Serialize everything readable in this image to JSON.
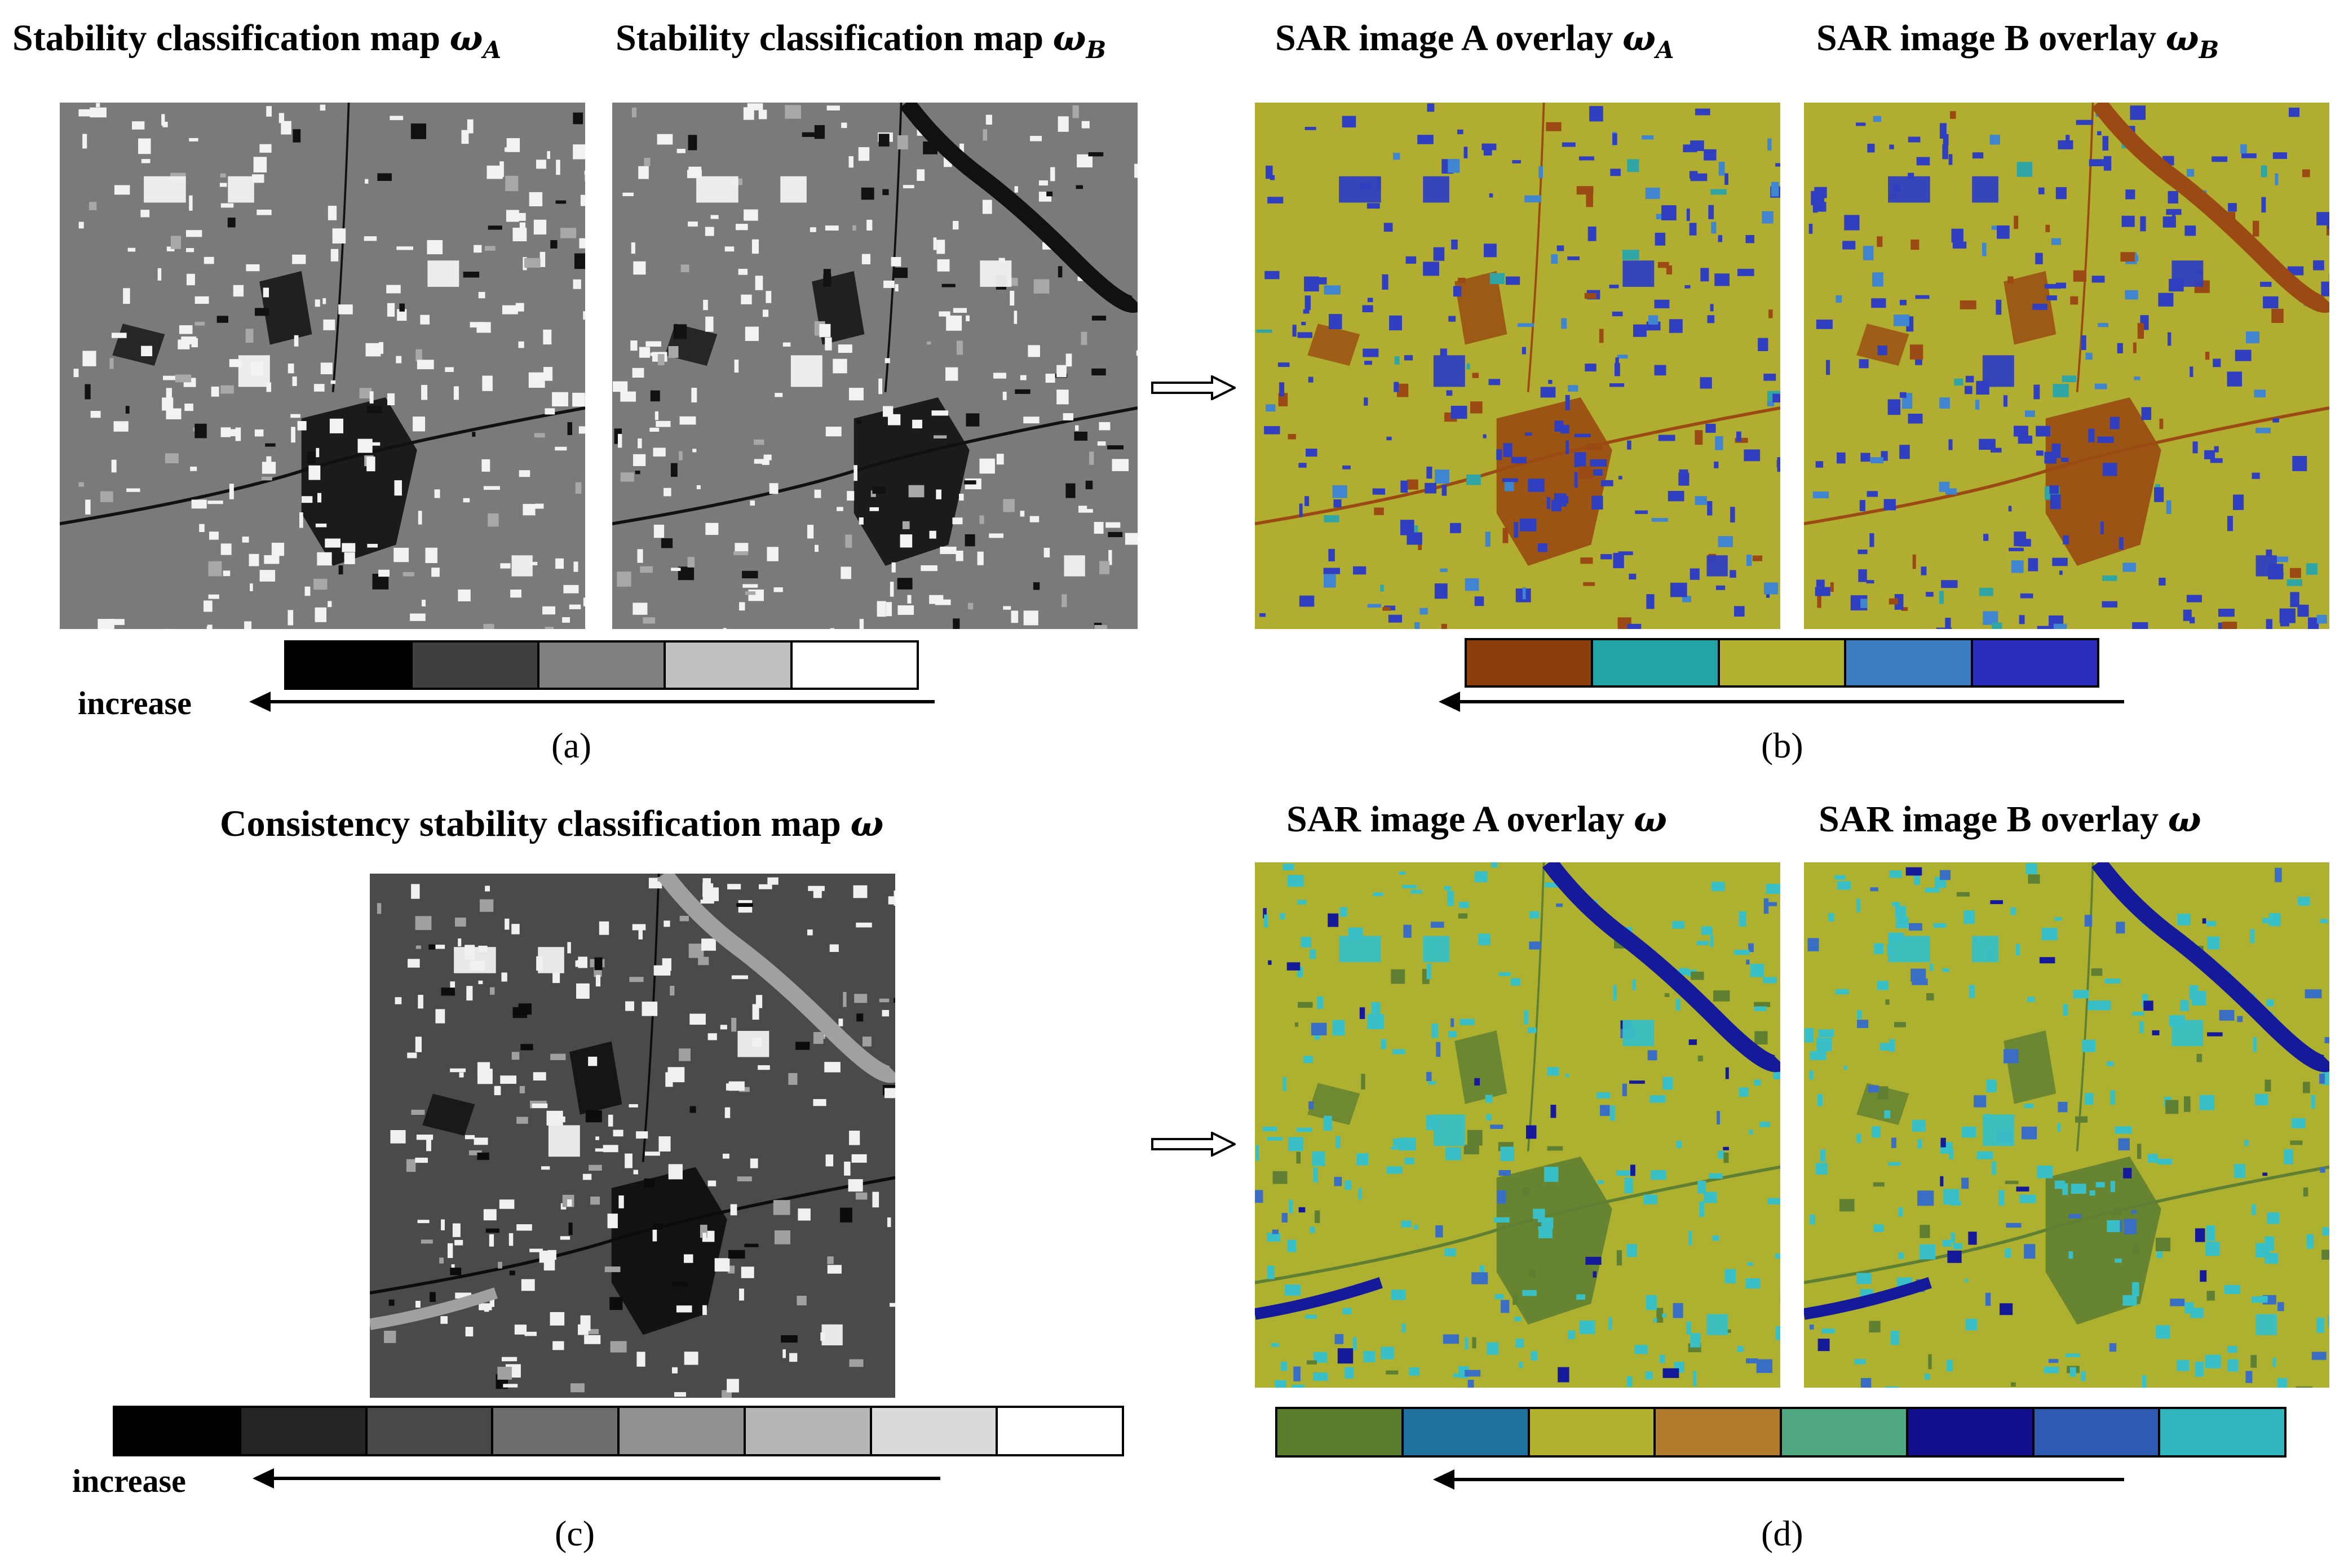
{
  "titles": {
    "a_left_prefix": "Stability classification map ",
    "a_right_prefix": "Stability classification map ",
    "b_left_prefix": "SAR image A overlay ",
    "b_right_prefix": "SAR image B overlay ",
    "c_prefix": "Consistency stability  classification map ",
    "d_left_prefix": "SAR image A overlay ",
    "d_right_prefix": "SAR image B overlay ",
    "omega": "ω",
    "sub_A": "A",
    "sub_B": "B"
  },
  "labels": {
    "increase": "increase"
  },
  "captions": {
    "a": "(a)",
    "b": "(b)",
    "c": "(c)",
    "d": "(d)"
  },
  "colorbars": {
    "a": [
      "#000000",
      "#3f3f3f",
      "#7f7f7f",
      "#bfbfbf",
      "#ffffff"
    ],
    "b": [
      "#8b3f0a",
      "#23a3a3",
      "#b3b12e",
      "#3c7dc4",
      "#2b2dbb"
    ],
    "c": [
      "#000000",
      "#242424",
      "#484848",
      "#6d6d6d",
      "#919191",
      "#b6b6b6",
      "#dadada",
      "#ffffff"
    ],
    "d": [
      "#5a7d2d",
      "#1f719f",
      "#b3b12e",
      "#b07b2b",
      "#4fa880",
      "#130f8c",
      "#2f5ab1",
      "#30b6bd"
    ]
  },
  "panel_colors": {
    "a": {
      "bg": "#7a7a7a",
      "dark": "#111111",
      "light": "#f2f2f2",
      "mid": "#a8a8a8"
    },
    "b": {
      "bg": "#b0ad30",
      "dark": "#9a4a12",
      "light": "#2f3fc0",
      "mid": "#3f85cf",
      "accent": "#2fa5a5"
    },
    "c": {
      "bg": "#4a4a4a",
      "dark": "#0c0c0c",
      "light": "#f0f0f0",
      "mid": "#a0a0a0"
    },
    "d": {
      "bg": "#aeb12f",
      "dark": "#5f8032",
      "light": "#39bfc6",
      "mid": "#3a6ec4",
      "accent": "#151a9a"
    }
  }
}
